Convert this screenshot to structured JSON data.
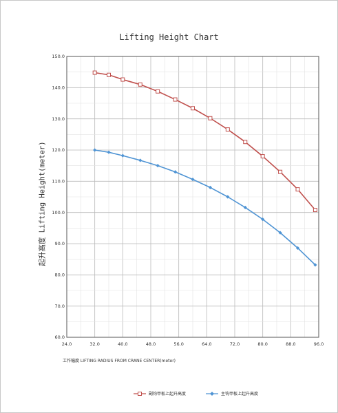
{
  "chart_data": {
    "type": "line",
    "title": "Lifting Height Chart",
    "ylabel": "起升高度 Lifting Height(meter)",
    "xlabel": "工作幅度  LIFTING RADIUS FROM CRANE CENTER(meter)",
    "xlim": [
      24,
      96
    ],
    "ylim": [
      60,
      150
    ],
    "x_ticks": [
      "24.0",
      "32.0",
      "40.0",
      "48.0",
      "56.0",
      "64.0",
      "72.0",
      "80.0",
      "88.0",
      "96.0"
    ],
    "y_ticks": [
      "60.0",
      "70.0",
      "80.0",
      "90.0",
      "100.0",
      "110.0",
      "120.0",
      "130.0",
      "140.0",
      "150.0"
    ],
    "grid": true,
    "legend_position": "bottom",
    "series": [
      {
        "name": "副钩甲板上起升高度",
        "color": "#c0504d",
        "marker": "square",
        "points": [
          [
            32,
            144.8
          ],
          [
            36,
            144.1
          ],
          [
            40,
            142.6
          ],
          [
            45,
            141.0
          ],
          [
            50,
            138.8
          ],
          [
            55,
            136.2
          ],
          [
            60,
            133.4
          ],
          [
            65,
            130.2
          ],
          [
            70,
            126.6
          ],
          [
            75,
            122.6
          ],
          [
            80,
            118.0
          ],
          [
            85,
            113.0
          ],
          [
            90,
            107.4
          ],
          [
            95,
            100.8
          ]
        ]
      },
      {
        "name": "主钩甲板上起升高度",
        "color": "#4f94d4",
        "marker": "diamond",
        "points": [
          [
            32,
            120.0
          ],
          [
            36,
            119.3
          ],
          [
            40,
            118.2
          ],
          [
            45,
            116.7
          ],
          [
            50,
            115.0
          ],
          [
            55,
            113.0
          ],
          [
            60,
            110.6
          ],
          [
            65,
            108.0
          ],
          [
            70,
            105.0
          ],
          [
            75,
            101.6
          ],
          [
            80,
            97.8
          ],
          [
            85,
            93.5
          ],
          [
            90,
            88.6
          ],
          [
            95,
            83.2
          ]
        ]
      }
    ]
  }
}
